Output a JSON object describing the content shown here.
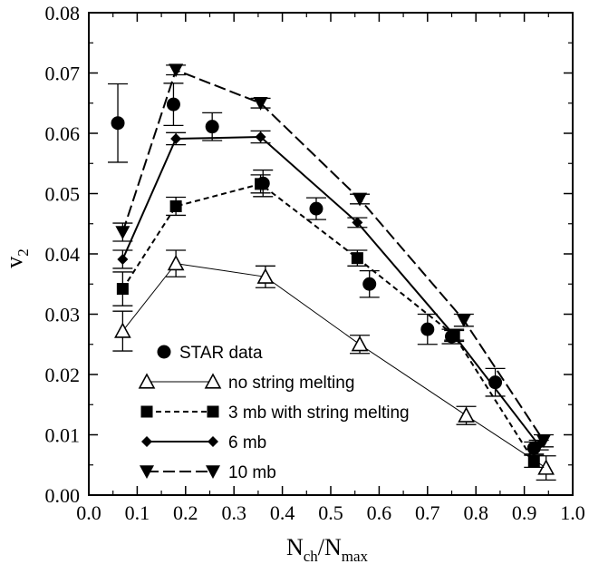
{
  "chart_data": {
    "type": "line",
    "xlabel": {
      "main": "N",
      "sub1": "ch",
      "mid": "/N",
      "sub2": "max"
    },
    "ylabel": {
      "main": "v",
      "sub": "2"
    },
    "xlim": [
      0.0,
      1.0
    ],
    "ylim": [
      0.0,
      0.08
    ],
    "xticks": [
      "0.0",
      "0.1",
      "0.2",
      "0.3",
      "0.4",
      "0.5",
      "0.6",
      "0.7",
      "0.8",
      "0.9",
      "1.0"
    ],
    "yticks": [
      "0.00",
      "0.01",
      "0.02",
      "0.03",
      "0.04",
      "0.05",
      "0.06",
      "0.07",
      "0.08"
    ],
    "legend_position": "bottom-left",
    "series": [
      {
        "name": "STAR data",
        "marker": "circle",
        "line": "none",
        "color": "#000000",
        "points": [
          {
            "x": 0.06,
            "y": 0.0617,
            "err": 0.0065
          },
          {
            "x": 0.175,
            "y": 0.0648,
            "err": 0.0035
          },
          {
            "x": 0.255,
            "y": 0.0611,
            "err": 0.0023
          },
          {
            "x": 0.36,
            "y": 0.0517,
            "err": 0.0022
          },
          {
            "x": 0.47,
            "y": 0.0475,
            "err": 0.0018
          },
          {
            "x": 0.58,
            "y": 0.035,
            "err": 0.0022
          },
          {
            "x": 0.7,
            "y": 0.0275,
            "err": 0.0025
          },
          {
            "x": 0.75,
            "y": 0.0263,
            "err": 0.0012
          },
          {
            "x": 0.84,
            "y": 0.0187,
            "err": 0.0023
          },
          {
            "x": 0.92,
            "y": 0.0078,
            "err": 0.001
          }
        ]
      },
      {
        "name": "no string melting",
        "marker": "triangle-up-open",
        "line": "solid-thin",
        "color": "#000000",
        "points": [
          {
            "x": 0.07,
            "y": 0.0272,
            "err": 0.0033
          },
          {
            "x": 0.18,
            "y": 0.0384,
            "err": 0.0022
          },
          {
            "x": 0.365,
            "y": 0.0362,
            "err": 0.0018
          },
          {
            "x": 0.56,
            "y": 0.025,
            "err": 0.0015
          },
          {
            "x": 0.78,
            "y": 0.0132,
            "err": 0.0015
          },
          {
            "x": 0.945,
            "y": 0.0045,
            "err": 0.002
          }
        ]
      },
      {
        "name": "3 mb with string melting",
        "marker": "square",
        "line": "short-dash",
        "color": "#000000",
        "points": [
          {
            "x": 0.07,
            "y": 0.0342,
            "err": 0.0028
          },
          {
            "x": 0.18,
            "y": 0.0479,
            "err": 0.0015
          },
          {
            "x": 0.355,
            "y": 0.0516,
            "err": 0.0015
          },
          {
            "x": 0.555,
            "y": 0.0393,
            "err": 0.0013
          },
          {
            "x": 0.755,
            "y": 0.0265,
            "err": 0.001
          },
          {
            "x": 0.92,
            "y": 0.0056,
            "err": 0.001
          }
        ]
      },
      {
        "name": "6 mb",
        "marker": "diamond",
        "line": "solid",
        "color": "#000000",
        "points": [
          {
            "x": 0.07,
            "y": 0.0391,
            "err": 0.0015
          },
          {
            "x": 0.18,
            "y": 0.0591,
            "err": 0.001
          },
          {
            "x": 0.355,
            "y": 0.0594,
            "err": 0.001
          },
          {
            "x": 0.555,
            "y": 0.0452,
            "err": 0.0008
          },
          {
            "x": 0.755,
            "y": 0.0265,
            "err": 0.0008
          },
          {
            "x": 0.93,
            "y": 0.0083,
            "err": 0.0008
          }
        ]
      },
      {
        "name": "10 mb",
        "marker": "triangle-down",
        "line": "long-dash",
        "color": "#000000",
        "points": [
          {
            "x": 0.07,
            "y": 0.0436,
            "err": 0.0015
          },
          {
            "x": 0.18,
            "y": 0.0705,
            "err": 0.0008
          },
          {
            "x": 0.355,
            "y": 0.065,
            "err": 0.0008
          },
          {
            "x": 0.56,
            "y": 0.0491,
            "err": 0.0008
          },
          {
            "x": 0.775,
            "y": 0.029,
            "err": 0.001
          },
          {
            "x": 0.94,
            "y": 0.009,
            "err": 0.001
          }
        ]
      }
    ]
  }
}
